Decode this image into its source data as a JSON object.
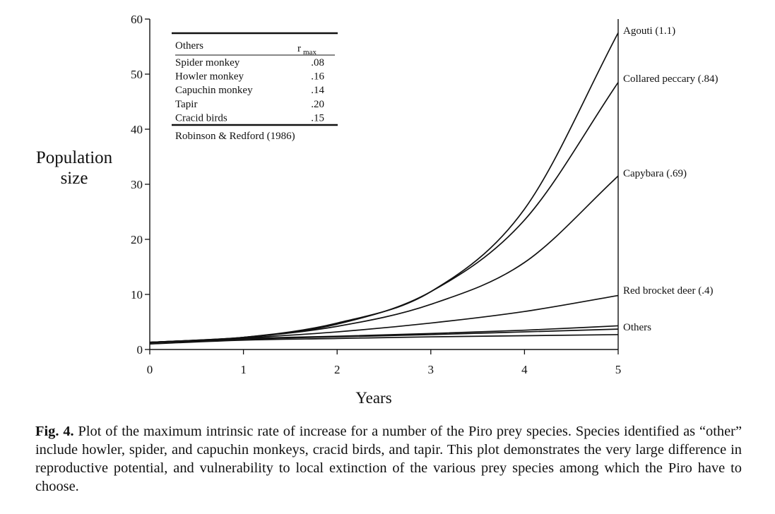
{
  "chart_data": {
    "type": "line",
    "xlabel": "Years",
    "ylabel": [
      "Population",
      "size"
    ],
    "xlim": [
      0,
      5
    ],
    "ylim": [
      0,
      60
    ],
    "x_ticks": [
      "0",
      "1",
      "2",
      "3",
      "4",
      "5"
    ],
    "y_ticks": [
      "0",
      "10",
      "20",
      "30",
      "40",
      "50",
      "60"
    ],
    "x_ticks_values": [
      0,
      1,
      2,
      3,
      4,
      5
    ],
    "y_ticks_values": [
      0,
      10,
      20,
      30,
      40,
      50,
      60
    ],
    "x": [
      0,
      1,
      2,
      3,
      4,
      5
    ],
    "series": [
      {
        "name": "Agouti (1.1)",
        "values": [
          1.3,
          2.2,
          4.8,
          10.5,
          25.5,
          57.5
        ]
      },
      {
        "name": "Collared peccary (.84)",
        "values": [
          1.3,
          2.2,
          4.6,
          10.5,
          23.5,
          48.5
        ]
      },
      {
        "name": "Capybara (.69)",
        "values": [
          1.3,
          2.2,
          4.2,
          8.2,
          15.8,
          31.5
        ]
      },
      {
        "name": "Red brocket deer (.4)",
        "values": [
          1.3,
          2.1,
          3.2,
          4.8,
          6.9,
          9.8
        ]
      },
      {
        "name": "Others",
        "values": [
          1.3,
          2.0,
          2.4,
          2.9,
          3.5,
          4.3
        ]
      },
      {
        "name": "",
        "values": [
          1.2,
          1.9,
          2.3,
          2.7,
          3.2,
          3.7
        ]
      },
      {
        "name": "",
        "values": [
          1.0,
          1.7,
          2.0,
          2.3,
          2.5,
          2.7
        ]
      }
    ],
    "legend": {
      "header": "Others",
      "header_value": "r",
      "header_value_sub": "max",
      "rows": [
        {
          "label": "Spider monkey",
          "value": ".08"
        },
        {
          "label": "Howler monkey",
          "value": ".16"
        },
        {
          "label": "Capuchin monkey",
          "value": ".14"
        },
        {
          "label": "Tapir",
          "value": ".20"
        },
        {
          "label": "Cracid birds",
          "value": ".15"
        }
      ],
      "source": "Robinson & Redford (1986)",
      "placement": "top-left"
    },
    "grid": false
  },
  "caption": {
    "label": "Fig. 4.",
    "text": " Plot of the maximum intrinsic rate of increase for a number of the Piro prey species. Species identified as “other” include howler, spider, and capuchin monkeys, cracid birds, and tapir. This plot demonstrates the very large difference in reproductive potential, and vulner­ability to local extinction of the various prey species among which the Piro have to choose."
  }
}
